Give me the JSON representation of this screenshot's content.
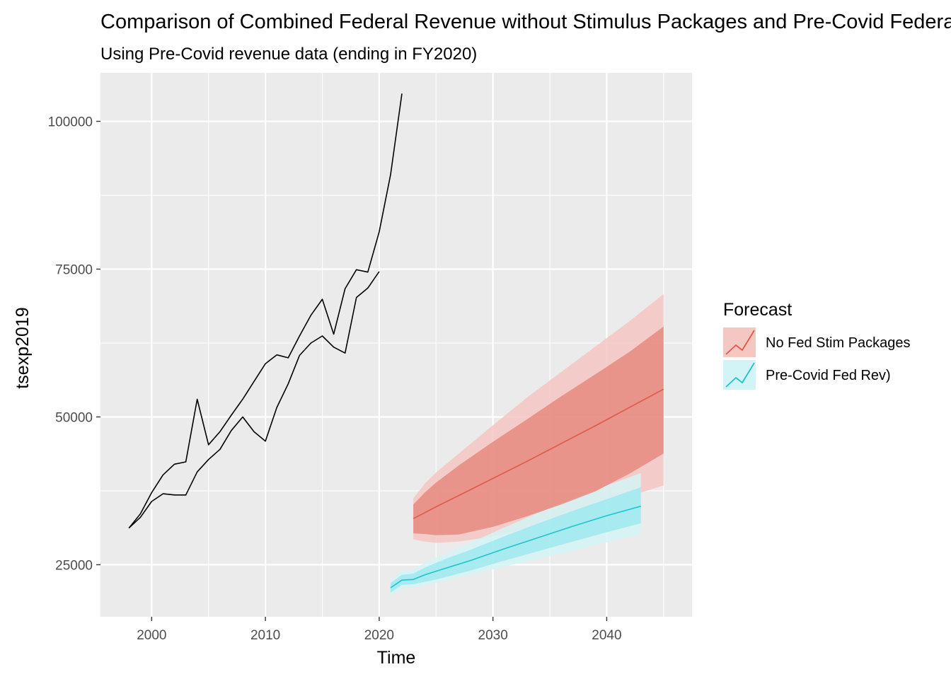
{
  "chart_data": {
    "type": "line",
    "title": "Comparison of Combined Federal Revenue without Stimulus Packages and Pre-Covid Federal Revenue",
    "subtitle": "Using Pre-Covid revenue data (ending in FY2020)",
    "xlabel": "Time",
    "ylabel": "tsexp2019",
    "xlim": [
      1995.5,
      2047.5
    ],
    "ylim": [
      16200,
      108200
    ],
    "x_ticks": [
      2000,
      2010,
      2020,
      2030,
      2040
    ],
    "x_tick_labels": [
      "2000",
      "2010",
      "2020",
      "2030",
      "2040"
    ],
    "y_ticks": [
      25000,
      50000,
      75000,
      100000
    ],
    "y_tick_labels": [
      "25000",
      "50000",
      "75000",
      "100000"
    ],
    "grid": true,
    "legend": {
      "title": "Forecast",
      "position": "right"
    },
    "series": [
      {
        "name": "",
        "kind": "history",
        "color": "#000000",
        "x": [
          1998,
          1999,
          2000,
          2001,
          2002,
          2003,
          2004,
          2005,
          2006,
          2007,
          2008,
          2009,
          2010,
          2011,
          2012,
          2013,
          2014,
          2015,
          2016,
          2017,
          2018,
          2019,
          2020
        ],
        "y": [
          31200,
          33000,
          35700,
          37000,
          36800,
          36800,
          40700,
          42800,
          44500,
          47700,
          50000,
          47500,
          45900,
          51600,
          55600,
          60400,
          62500,
          63700,
          61800,
          60800,
          70200,
          71800,
          74600
        ]
      },
      {
        "name": "",
        "kind": "history",
        "color": "#000000",
        "x": [
          1998,
          1999,
          2000,
          2001,
          2002,
          2003,
          2004,
          2005,
          2006,
          2007,
          2008,
          2009,
          2010,
          2011,
          2012,
          2013,
          2014,
          2015,
          2016,
          2017,
          2018,
          2019,
          2020,
          2021,
          2022
        ],
        "y": [
          31200,
          33600,
          37200,
          40200,
          42000,
          42400,
          53000,
          45300,
          47500,
          50300,
          53000,
          56000,
          59000,
          60500,
          60000,
          63700,
          67200,
          69900,
          64000,
          71700,
          74900,
          74500,
          81300,
          91000,
          104700
        ]
      },
      {
        "name": "No Fed Stim Packages",
        "kind": "forecast",
        "color": "#e15848",
        "band80_color": "#e68a80",
        "band95_color": "#f5c7c3",
        "x": [
          2023,
          2024,
          2025,
          2027,
          2030,
          2033,
          2036,
          2039,
          2042,
          2045
        ],
        "mean": [
          32800,
          33800,
          34800,
          36700,
          39600,
          42500,
          45500,
          48500,
          51600,
          54700
        ],
        "lo80": [
          30300,
          30200,
          30000,
          30100,
          31400,
          33200,
          35200,
          37400,
          40400,
          43800
        ],
        "hi80": [
          35200,
          37200,
          38900,
          41800,
          45800,
          49600,
          53500,
          57200,
          61000,
          65300
        ],
        "lo95": [
          29300,
          28900,
          28700,
          28900,
          29800,
          31100,
          32800,
          34600,
          36600,
          38400
        ],
        "hi95": [
          36200,
          38700,
          40600,
          43800,
          48600,
          53300,
          57600,
          61900,
          66200,
          70800
        ]
      },
      {
        "name": "Pre-Covid Fed Rev)",
        "kind": "forecast",
        "color": "#1fc3cd",
        "band80_color": "#9fe9ee",
        "band95_color": "#d3f4f6",
        "x": [
          2021,
          2022,
          2023,
          2024,
          2025,
          2026,
          2028,
          2031,
          2034,
          2037,
          2040,
          2043
        ],
        "mean": [
          21100,
          22400,
          22500,
          23300,
          23900,
          24500,
          25700,
          27700,
          29600,
          31500,
          33300,
          34900
        ],
        "lo80": [
          20300,
          21600,
          21700,
          22100,
          22500,
          23000,
          24000,
          25700,
          27300,
          28900,
          30500,
          32000
        ],
        "hi80": [
          21900,
          23300,
          23500,
          24500,
          25300,
          26100,
          27500,
          29800,
          32000,
          34100,
          36100,
          38100
        ],
        "lo95": [
          19800,
          21000,
          21200,
          21500,
          21900,
          22400,
          23300,
          24700,
          26000,
          27400,
          28800,
          30200
        ],
        "hi95": [
          22400,
          24000,
          24200,
          25300,
          26200,
          27000,
          28700,
          31300,
          33800,
          36200,
          38400,
          40500
        ]
      }
    ]
  }
}
